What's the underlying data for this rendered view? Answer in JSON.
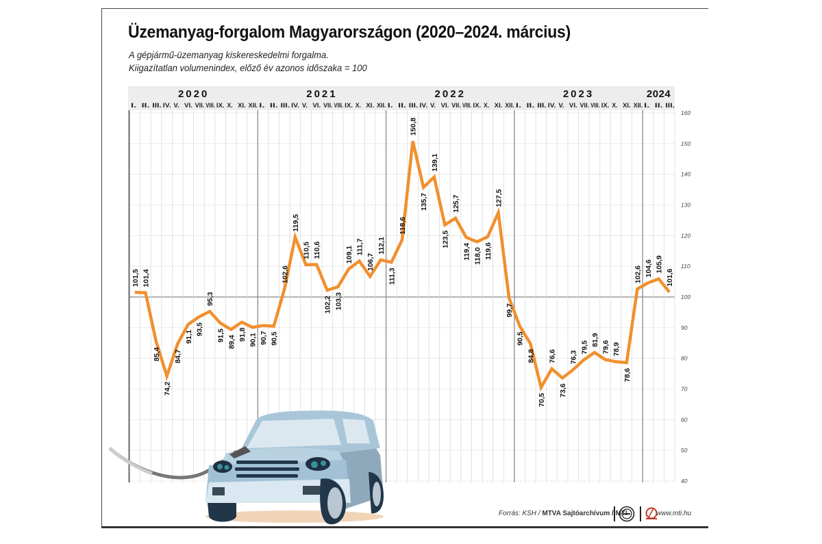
{
  "header": {
    "title": "Üzemanyag-forgalom Magyarországon (2020–2024. március)",
    "subtitle_line1": "A gépjármű-üzemanyag kiskereskedelmi forgalma.",
    "subtitle_line2": "Kiigazítatlan volumenindex, előző év azonos időszaka = 100"
  },
  "footer": {
    "source_prefix": "Forrás: KSH / ",
    "source_bold": "MTVA Sajtóarchívum / MTI",
    "website": "www.mti.hu",
    "logo1_icon": "mti-round-logo-icon",
    "logo2_icon": "mtva-logo-icon"
  },
  "illustration": {
    "icon": "car-refueling-illustration"
  },
  "colors": {
    "line": "#F0902E",
    "header_band": "#EDEDED",
    "grid": "#DADADA",
    "year_divider": "#888888",
    "reference_line": "#888888"
  },
  "chart_data": {
    "type": "line",
    "title": "Üzemanyag-forgalom Magyarországon (2020–2024. március)",
    "xlabel": "",
    "ylabel": "",
    "ylim": [
      40,
      160
    ],
    "yticks": [
      "40",
      "50",
      "60",
      "70",
      "80",
      "90",
      "100",
      "110",
      "120",
      "130",
      "140",
      "150",
      "160"
    ],
    "reference_line": 100,
    "grid": true,
    "legend": "none",
    "years": [
      {
        "label": "2020",
        "months": 12
      },
      {
        "label": "2021",
        "months": 12
      },
      {
        "label": "2022",
        "months": 12
      },
      {
        "label": "2023",
        "months": 12
      },
      {
        "label": "2024",
        "months": 3
      }
    ],
    "month_labels": [
      "I.",
      "II.",
      "III.",
      "IV.",
      "V.",
      "VI.",
      "VII.",
      "VIII.",
      "IX.",
      "X.",
      "XI.",
      "XII."
    ],
    "series": [
      {
        "name": "Volumenindex",
        "values": [
          101.5,
          101.4,
          85.4,
          74.2,
          84.7,
          91.1,
          93.5,
          95.3,
          91.5,
          89.4,
          91.8,
          90.1,
          90.7,
          90.5,
          102.6,
          119.5,
          110.5,
          110.6,
          102.2,
          103.3,
          109.1,
          111.7,
          106.7,
          112.1,
          111.3,
          118.6,
          150.8,
          135.7,
          139.1,
          123.5,
          125.7,
          119.4,
          118.0,
          119.6,
          127.5,
          99.7,
          90.5,
          84.8,
          70.5,
          76.6,
          73.6,
          76.3,
          79.5,
          81.9,
          79.6,
          78.9,
          78.6,
          102.6,
          104.6,
          105.9,
          101.6
        ],
        "labels": [
          "101,5",
          "101,4",
          "85,4",
          "74,2",
          "84,7",
          "91,1",
          "93,5",
          "95,3",
          "91,5",
          "89,4",
          "91,8",
          "90,1",
          "90,7",
          "90,5",
          "102,6",
          "119,5",
          "110,5",
          "110,6",
          "102,2",
          "103,3",
          "109,1",
          "111,7",
          "106,7",
          "112,1",
          "111,3",
          "118,6",
          "150,8",
          "135,7",
          "139,1",
          "123,5",
          "125,7",
          "119,4",
          "118,0",
          "119,6",
          "127,5",
          "99,7",
          "90,5",
          "84,8",
          "70,5",
          "76,6",
          "73,6",
          "76,3",
          "79,5",
          "81,9",
          "79,6",
          "78,9",
          "78,6",
          "102,6",
          "104,6",
          "105,9",
          "101,6"
        ],
        "label_position": [
          "above",
          "above",
          "below",
          "below",
          "below",
          "below",
          "below",
          "above",
          "below",
          "below",
          "below",
          "below",
          "below",
          "below",
          "above",
          "above",
          "above",
          "above",
          "below",
          "below",
          "above",
          "above",
          "above",
          "above",
          "below",
          "above",
          "above",
          "below",
          "above",
          "below",
          "above",
          "below",
          "below",
          "below",
          "above",
          "below",
          "below",
          "below",
          "below",
          "above",
          "below",
          "above",
          "above",
          "above",
          "above",
          "above",
          "below",
          "above",
          "above",
          "above",
          "above"
        ]
      }
    ]
  }
}
